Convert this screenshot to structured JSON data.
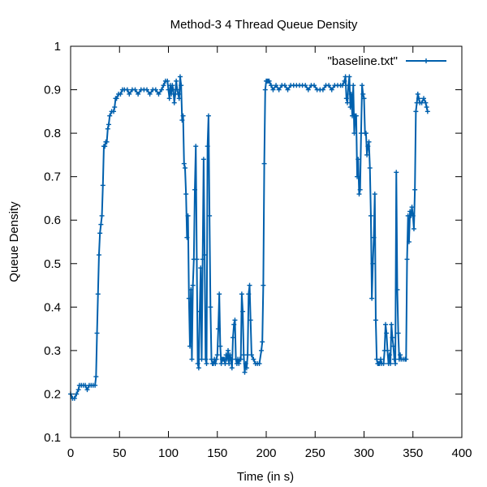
{
  "chart_data": {
    "type": "line",
    "title": "Method-3 4 Thread Queue Density",
    "xlabel": "Time (in s)",
    "ylabel": "Queue Density",
    "xlim": [
      0,
      400
    ],
    "ylim": [
      0.1,
      1
    ],
    "xticks": [
      0,
      50,
      100,
      150,
      200,
      250,
      300,
      350,
      400
    ],
    "xtick_labels": [
      "0",
      "50",
      "100",
      "150",
      "200",
      "250",
      "300",
      "350",
      "400"
    ],
    "yticks": [
      0.1,
      0.2,
      0.3,
      0.4,
      0.5,
      0.6,
      0.7,
      0.8,
      0.9,
      1
    ],
    "ytick_labels": [
      "0.1",
      "0.2",
      "0.3",
      "0.4",
      "0.5",
      "0.6",
      "0.7",
      "0.8",
      "0.9",
      "1"
    ],
    "grid": false,
    "legend_position": "top-right",
    "series": [
      {
        "name": "\"baseline.txt\"",
        "color": "#0060ad",
        "points": [
          [
            0,
            0.2
          ],
          [
            2,
            0.19
          ],
          [
            4,
            0.19
          ],
          [
            6,
            0.2
          ],
          [
            8,
            0.21
          ],
          [
            9,
            0.22
          ],
          [
            11,
            0.22
          ],
          [
            13,
            0.22
          ],
          [
            15,
            0.22
          ],
          [
            17,
            0.21
          ],
          [
            19,
            0.22
          ],
          [
            21,
            0.22
          ],
          [
            23,
            0.22
          ],
          [
            25,
            0.22
          ],
          [
            26,
            0.24
          ],
          [
            27,
            0.34
          ],
          [
            28,
            0.43
          ],
          [
            29,
            0.52
          ],
          [
            30,
            0.57
          ],
          [
            31,
            0.59
          ],
          [
            32,
            0.61
          ],
          [
            33,
            0.68
          ],
          [
            34,
            0.77
          ],
          [
            35,
            0.77
          ],
          [
            36,
            0.78
          ],
          [
            37,
            0.78
          ],
          [
            38,
            0.81
          ],
          [
            39,
            0.82
          ],
          [
            40,
            0.84
          ],
          [
            42,
            0.85
          ],
          [
            44,
            0.85
          ],
          [
            45,
            0.86
          ],
          [
            46,
            0.88
          ],
          [
            47,
            0.88
          ],
          [
            49,
            0.89
          ],
          [
            51,
            0.89
          ],
          [
            53,
            0.9
          ],
          [
            55,
            0.9
          ],
          [
            58,
            0.9
          ],
          [
            60,
            0.89
          ],
          [
            63,
            0.9
          ],
          [
            66,
            0.9
          ],
          [
            69,
            0.89
          ],
          [
            72,
            0.9
          ],
          [
            75,
            0.9
          ],
          [
            78,
            0.9
          ],
          [
            81,
            0.89
          ],
          [
            84,
            0.9
          ],
          [
            87,
            0.9
          ],
          [
            90,
            0.89
          ],
          [
            93,
            0.9
          ],
          [
            95,
            0.91
          ],
          [
            97,
            0.92
          ],
          [
            99,
            0.92
          ],
          [
            100,
            0.9
          ],
          [
            101,
            0.88
          ],
          [
            102,
            0.91
          ],
          [
            103,
            0.89
          ],
          [
            104,
            0.91
          ],
          [
            105,
            0.9
          ],
          [
            106,
            0.87
          ],
          [
            107,
            0.89
          ],
          [
            108,
            0.92
          ],
          [
            109,
            0.9
          ],
          [
            110,
            0.89
          ],
          [
            111,
            0.88
          ],
          [
            112,
            0.93
          ],
          [
            113,
            0.91
          ],
          [
            114,
            0.83
          ],
          [
            115,
            0.84
          ],
          [
            116,
            0.73
          ],
          [
            117,
            0.72
          ],
          [
            118,
            0.66
          ],
          [
            119,
            0.56
          ],
          [
            120,
            0.61
          ],
          [
            121,
            0.42
          ],
          [
            122,
            0.31
          ],
          [
            123,
            0.44
          ],
          [
            124,
            0.28
          ],
          [
            125,
            0.45
          ],
          [
            126,
            0.51
          ],
          [
            127,
            0.67
          ],
          [
            128,
            0.77
          ],
          [
            129,
            0.51
          ],
          [
            130,
            0.27
          ],
          [
            131,
            0.26
          ],
          [
            132,
            0.39
          ],
          [
            133,
            0.49
          ],
          [
            134,
            0.28
          ],
          [
            135,
            0.51
          ],
          [
            136,
            0.74
          ],
          [
            137,
            0.52
          ],
          [
            138,
            0.28
          ],
          [
            139,
            0.27
          ],
          [
            140,
            0.77
          ],
          [
            141,
            0.84
          ],
          [
            142,
            0.61
          ],
          [
            143,
            0.4
          ],
          [
            144,
            0.28
          ],
          [
            145,
            0.27
          ],
          [
            146,
            0.27
          ],
          [
            147,
            0.28
          ],
          [
            148,
            0.27
          ],
          [
            149,
            0.28
          ],
          [
            150,
            0.29
          ],
          [
            151,
            0.35
          ],
          [
            152,
            0.43
          ],
          [
            153,
            0.31
          ],
          [
            154,
            0.27
          ],
          [
            155,
            0.28
          ],
          [
            156,
            0.28
          ],
          [
            157,
            0.28
          ],
          [
            158,
            0.27
          ],
          [
            159,
            0.29
          ],
          [
            160,
            0.28
          ],
          [
            161,
            0.3
          ],
          [
            162,
            0.27
          ],
          [
            163,
            0.29
          ],
          [
            164,
            0.28
          ],
          [
            165,
            0.26
          ],
          [
            166,
            0.33
          ],
          [
            167,
            0.36
          ],
          [
            168,
            0.37
          ],
          [
            169,
            0.28
          ],
          [
            170,
            0.27
          ],
          [
            171,
            0.28
          ],
          [
            172,
            0.27
          ],
          [
            173,
            0.28
          ],
          [
            174,
            0.28
          ],
          [
            175,
            0.43
          ],
          [
            176,
            0.39
          ],
          [
            177,
            0.29
          ],
          [
            178,
            0.25
          ],
          [
            179,
            0.27
          ],
          [
            180,
            0.26
          ],
          [
            181,
            0.29
          ],
          [
            182,
            0.43
          ],
          [
            183,
            0.45
          ],
          [
            184,
            0.37
          ],
          [
            185,
            0.29
          ],
          [
            187,
            0.28
          ],
          [
            189,
            0.27
          ],
          [
            191,
            0.27
          ],
          [
            193,
            0.27
          ],
          [
            195,
            0.3
          ],
          [
            196,
            0.32
          ],
          [
            197,
            0.45
          ],
          [
            198,
            0.73
          ],
          [
            199,
            0.9
          ],
          [
            200,
            0.92
          ],
          [
            201,
            0.92
          ],
          [
            202,
            0.92
          ],
          [
            203,
            0.92
          ],
          [
            205,
            0.91
          ],
          [
            207,
            0.9
          ],
          [
            210,
            0.91
          ],
          [
            213,
            0.9
          ],
          [
            216,
            0.91
          ],
          [
            219,
            0.91
          ],
          [
            222,
            0.9
          ],
          [
            225,
            0.91
          ],
          [
            228,
            0.91
          ],
          [
            231,
            0.91
          ],
          [
            234,
            0.91
          ],
          [
            237,
            0.91
          ],
          [
            240,
            0.91
          ],
          [
            243,
            0.9
          ],
          [
            246,
            0.91
          ],
          [
            249,
            0.91
          ],
          [
            252,
            0.9
          ],
          [
            255,
            0.9
          ],
          [
            258,
            0.9
          ],
          [
            261,
            0.91
          ],
          [
            264,
            0.91
          ],
          [
            267,
            0.9
          ],
          [
            270,
            0.91
          ],
          [
            273,
            0.91
          ],
          [
            276,
            0.91
          ],
          [
            278,
            0.91
          ],
          [
            280,
            0.92
          ],
          [
            281,
            0.93
          ],
          [
            282,
            0.88
          ],
          [
            283,
            0.87
          ],
          [
            284,
            0.91
          ],
          [
            285,
            0.93
          ],
          [
            286,
            0.86
          ],
          [
            287,
            0.89
          ],
          [
            288,
            0.84
          ],
          [
            289,
            0.91
          ],
          [
            290,
            0.8
          ],
          [
            291,
            0.84
          ],
          [
            292,
            0.84
          ],
          [
            293,
            0.7
          ],
          [
            294,
            0.74
          ],
          [
            295,
            0.66
          ],
          [
            296,
            0.67
          ],
          [
            297,
            0.8
          ],
          [
            298,
            0.91
          ],
          [
            299,
            0.89
          ],
          [
            300,
            0.88
          ],
          [
            301,
            0.8
          ],
          [
            302,
            0.8
          ],
          [
            303,
            0.75
          ],
          [
            304,
            0.77
          ],
          [
            305,
            0.78
          ],
          [
            306,
            0.72
          ],
          [
            307,
            0.61
          ],
          [
            308,
            0.42
          ],
          [
            309,
            0.5
          ],
          [
            310,
            0.56
          ],
          [
            311,
            0.66
          ],
          [
            312,
            0.37
          ],
          [
            313,
            0.28
          ],
          [
            314,
            0.27
          ],
          [
            315,
            0.27
          ],
          [
            316,
            0.27
          ],
          [
            317,
            0.28
          ],
          [
            318,
            0.27
          ],
          [
            320,
            0.27
          ],
          [
            321,
            0.3
          ],
          [
            322,
            0.36
          ],
          [
            323,
            0.34
          ],
          [
            324,
            0.3
          ],
          [
            325,
            0.27
          ],
          [
            326,
            0.29
          ],
          [
            327,
            0.27
          ],
          [
            328,
            0.36
          ],
          [
            329,
            0.33
          ],
          [
            330,
            0.31
          ],
          [
            331,
            0.28
          ],
          [
            332,
            0.27
          ],
          [
            333,
            0.71
          ],
          [
            334,
            0.44
          ],
          [
            335,
            0.34
          ],
          [
            336,
            0.28
          ],
          [
            337,
            0.29
          ],
          [
            338,
            0.28
          ],
          [
            340,
            0.28
          ],
          [
            342,
            0.28
          ],
          [
            343,
            0.28
          ],
          [
            344,
            0.51
          ],
          [
            345,
            0.61
          ],
          [
            346,
            0.55
          ],
          [
            347,
            0.62
          ],
          [
            348,
            0.61
          ],
          [
            349,
            0.63
          ],
          [
            350,
            0.61
          ],
          [
            351,
            0.58
          ],
          [
            352,
            0.67
          ],
          [
            353,
            0.85
          ],
          [
            354,
            0.87
          ],
          [
            355,
            0.89
          ],
          [
            356,
            0.88
          ],
          [
            357,
            0.87
          ],
          [
            359,
            0.87
          ],
          [
            361,
            0.88
          ],
          [
            363,
            0.87
          ],
          [
            364,
            0.86
          ],
          [
            365,
            0.85
          ]
        ]
      }
    ]
  }
}
